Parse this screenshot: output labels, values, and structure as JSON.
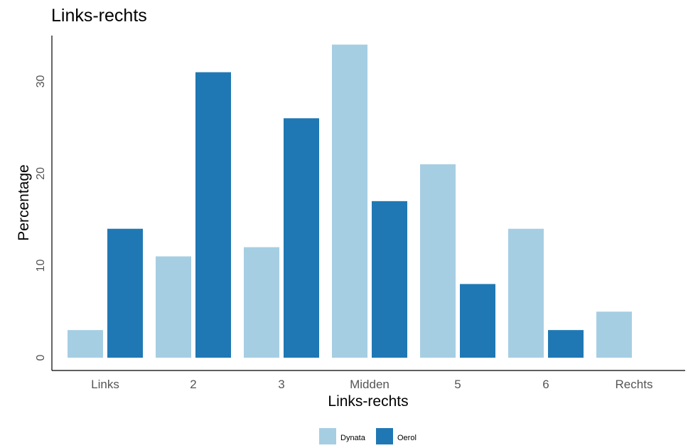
{
  "chart_data": {
    "type": "bar",
    "title": "Links-rechts",
    "xlabel": "Links-rechts",
    "ylabel": "Percentage",
    "categories": [
      "Links",
      "2",
      "3",
      "Midden",
      "5",
      "6",
      "Rechts"
    ],
    "series": [
      {
        "name": "Dynata",
        "color": "#a6cee3",
        "values": [
          3,
          11,
          12,
          34,
          21,
          14,
          5
        ]
      },
      {
        "name": "Oerol",
        "color": "#1f78b4",
        "values": [
          14,
          31,
          26,
          17,
          8,
          3,
          null
        ]
      }
    ],
    "ylim": [
      0,
      35
    ],
    "yticks": [
      0,
      10,
      20,
      30
    ],
    "grid": false,
    "legend_position": "bottom"
  }
}
